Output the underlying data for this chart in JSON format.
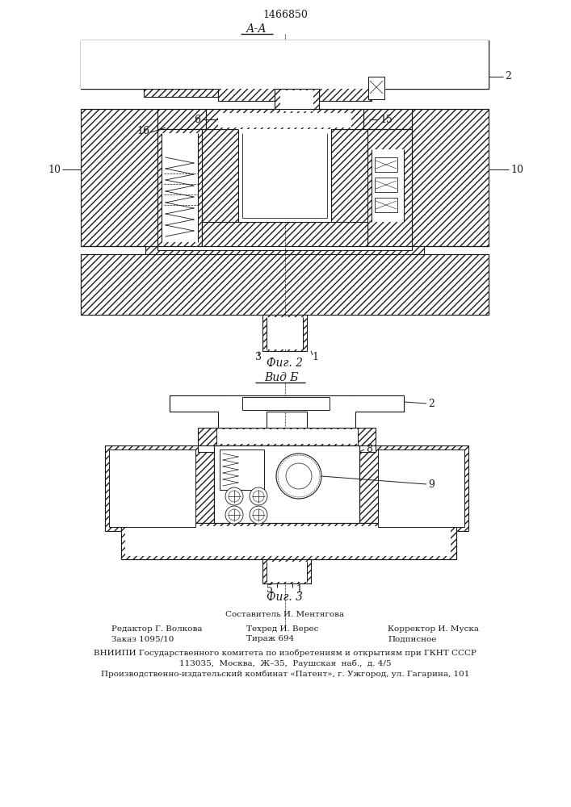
{
  "patent_number": "1466850",
  "fig2_label": "А-А",
  "fig2_caption": "Фиг. 2",
  "fig3_label": "Вид Б",
  "fig3_caption": "Фиг. 3",
  "footer_line1": "Составитель И. Ментягова",
  "footer_col1_line1": "Редактор Г. Волкова",
  "footer_col1_line2": "Заказ 1095/10",
  "footer_col2_line1": "Техред И. Верес",
  "footer_col2_line2": "Тираж 694",
  "footer_col3_line1": "Корректор И. Муска",
  "footer_col3_line2": "Подписное",
  "footer_vniiipi": "ВНИИПИ Государственного комитета по изобретениям и открытиям при ГКНТ СССР",
  "footer_address1": "113035,  Москва,  Ж–35,  Раушская  наб.,  д. 4/5",
  "footer_address2": "Производственно-издательский комбинат «Патент», г. Ужгород, ул. Гагарина, 101",
  "bg_color": "#ffffff",
  "line_color": "#1a1a1a"
}
